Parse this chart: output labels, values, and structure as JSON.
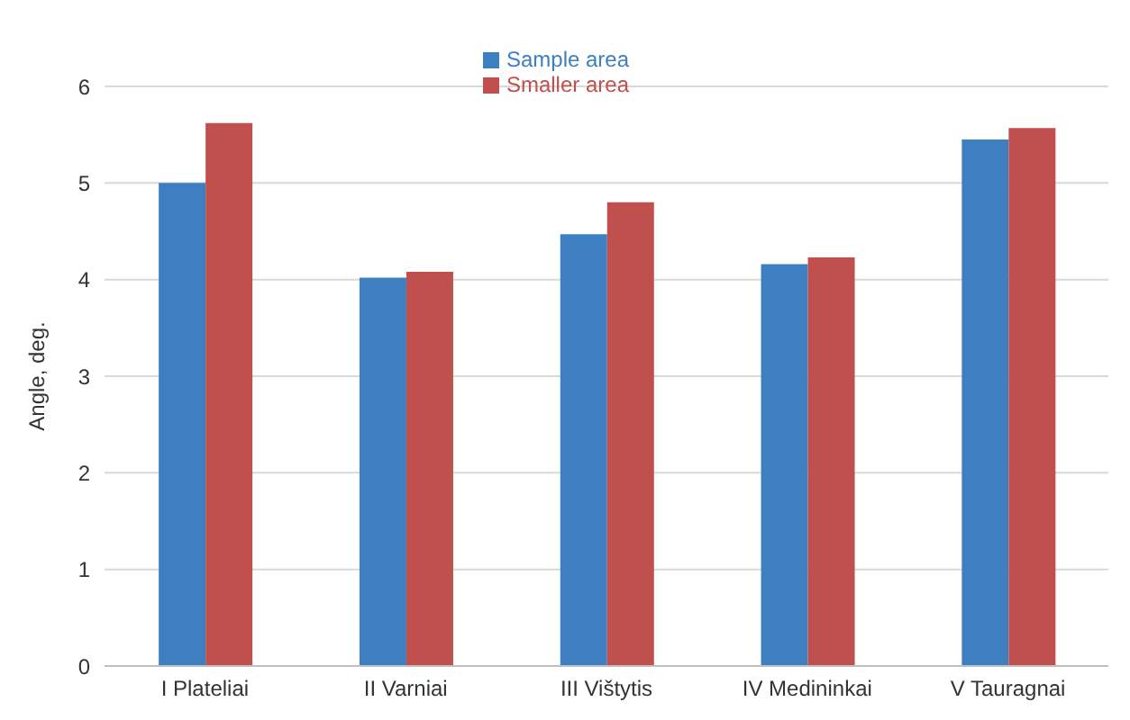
{
  "chart_data": {
    "type": "bar",
    "ylabel": "Angle, deg.",
    "categories": [
      "I Plateliai",
      "II Varniai",
      "III Vištytis",
      "IV Medininkai",
      "V Tauragnai"
    ],
    "series": [
      {
        "name": "Sample area",
        "color": "#3d7fc1",
        "values": [
          5.0,
          4.02,
          4.47,
          4.16,
          5.45
        ]
      },
      {
        "name": "Smaller area",
        "color": "#c0504d",
        "values": [
          5.62,
          4.08,
          4.8,
          4.23,
          5.57
        ]
      }
    ],
    "ylim": [
      0,
      6
    ],
    "yticks": [
      0,
      1,
      2,
      3,
      4,
      5,
      6
    ],
    "grid": "y",
    "legend": "top"
  }
}
